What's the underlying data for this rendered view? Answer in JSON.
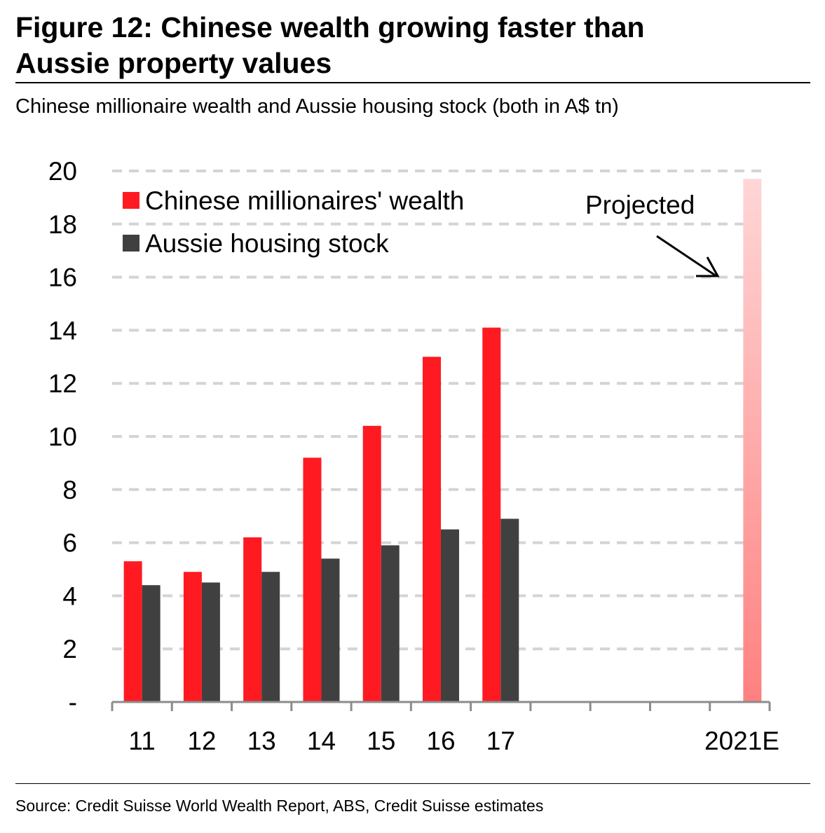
{
  "title_line1": "Figure 12: Chinese wealth growing faster than",
  "title_line2": "Aussie property values",
  "subtitle": "Chinese millionaire wealth and Aussie housing stock (both in A$ tn)",
  "source": "Source: Credit Suisse World Wealth Report, ABS, Credit Suisse estimates",
  "chart_data": {
    "type": "bar",
    "title": "Chinese millionaire wealth and Aussie housing stock (both in A$ tn)",
    "xlabel": "",
    "ylabel": "",
    "ylim": [
      0,
      20
    ],
    "yticks": [
      0,
      2,
      4,
      6,
      8,
      10,
      12,
      14,
      16,
      18,
      20
    ],
    "ytick_labels": [
      "-",
      "2",
      "4",
      "6",
      "8",
      "10",
      "12",
      "14",
      "16",
      "18",
      "20"
    ],
    "grid": true,
    "legend_position": "top-left",
    "categories": [
      "11",
      "12",
      "13",
      "14",
      "15",
      "16",
      "17",
      "",
      "",
      "",
      "2021E"
    ],
    "series": [
      {
        "name": "Chinese millionaires' wealth",
        "color": "#ff1a22",
        "values": [
          5.3,
          4.9,
          6.2,
          9.2,
          10.4,
          13.0,
          14.1,
          null,
          null,
          null,
          19.7
        ]
      },
      {
        "name": "Aussie housing stock",
        "color": "#404040",
        "values": [
          4.4,
          4.5,
          4.9,
          5.4,
          5.9,
          6.5,
          6.9,
          null,
          null,
          null,
          null
        ]
      }
    ],
    "projected_color_top": "#ffd6d6",
    "projected_color_bottom": "#ff8080",
    "annotation": "Projected"
  }
}
